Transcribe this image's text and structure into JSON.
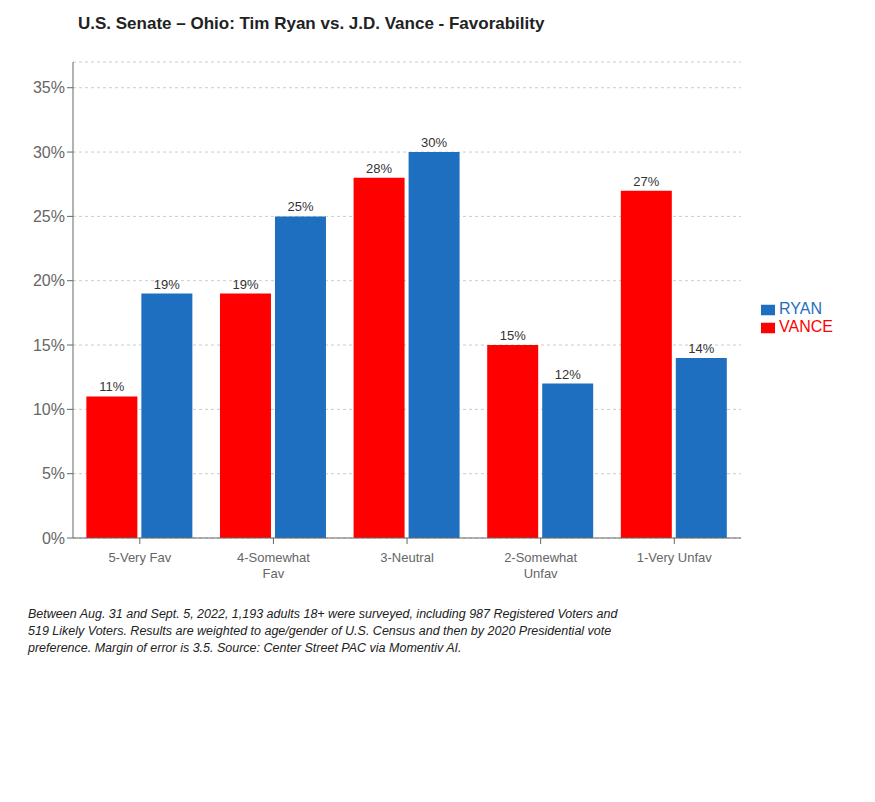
{
  "chart_data": {
    "type": "bar",
    "title": "U.S. Senate – Ohio: Tim Ryan vs. J.D. Vance - Favorability",
    "categories": [
      "5-Very Fav",
      "4-Somewhat\nFav",
      "3-Neutral",
      "2-Somewhat\nUnfav",
      "1-Very Unfav"
    ],
    "series": [
      {
        "name": "VANCE",
        "color": "#FF0000",
        "values": [
          11,
          19,
          28,
          15,
          27
        ],
        "value_labels": [
          "11%",
          "19%",
          "28%",
          "15%",
          "27%"
        ]
      },
      {
        "name": "RYAN",
        "color": "#1E6FBF",
        "values": [
          19,
          25,
          30,
          12,
          14
        ],
        "value_labels": [
          "19%",
          "25%",
          "30%",
          "12%",
          "14%"
        ]
      }
    ],
    "ylim": [
      0,
      37
    ],
    "yticks": [
      {
        "value": 0,
        "label": "0%"
      },
      {
        "value": 5,
        "label": "5%"
      },
      {
        "value": 10,
        "label": "10%"
      },
      {
        "value": 15,
        "label": "15%"
      },
      {
        "value": 20,
        "label": "20%"
      },
      {
        "value": 25,
        "label": "25%"
      },
      {
        "value": 30,
        "label": "30%"
      },
      {
        "value": 35,
        "label": "35%"
      }
    ],
    "grid": true,
    "legend": "right",
    "data_labels": true,
    "annotations": [
      "Between Aug. 31 and Sept. 5, 2022, 1,193 adults 18+ were surveyed, including 987 Registered Voters and\n519 Likely Voters. Results are weighted to age/gender of U.S. Census and then by 2020 Presidential vote\npreference. Margin of error is 3.5. Source: Center Street PAC via Momentiv AI."
    ]
  }
}
